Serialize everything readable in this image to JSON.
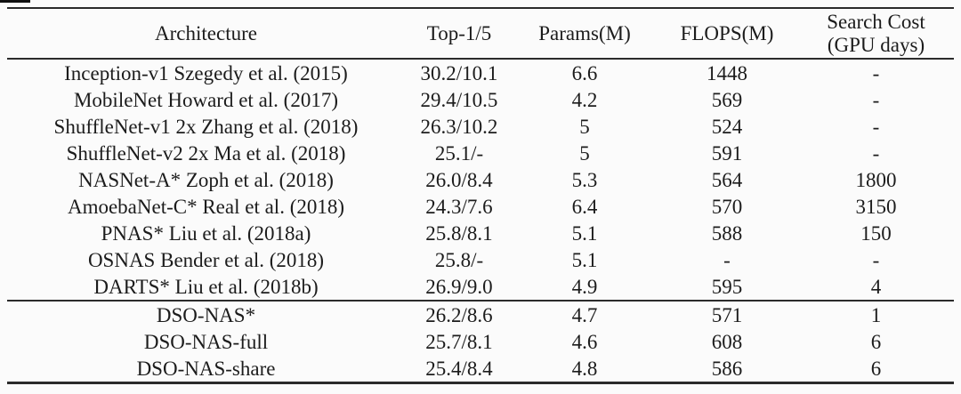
{
  "table": {
    "header": {
      "architecture": "Architecture",
      "top15": "Top-1/5",
      "params": "Params(M)",
      "flops": "FLOPS(M)",
      "search_cost_line1": "Search Cost",
      "search_cost_line2": "(GPU days)"
    },
    "baseline_rows": [
      [
        "Inception-v1 Szegedy et al. (2015)",
        "30.2/10.1",
        "6.6",
        "1448",
        "-"
      ],
      [
        "MobileNet Howard et al. (2017)",
        "29.4/10.5",
        "4.2",
        "569",
        "-"
      ],
      [
        "ShuffleNet-v1 2x Zhang et al. (2018)",
        "26.3/10.2",
        "5",
        "524",
        "-"
      ],
      [
        "ShuffleNet-v2 2x Ma et al. (2018)",
        "25.1/-",
        "5",
        "591",
        "-"
      ],
      [
        "NASNet-A* Zoph et al. (2018)",
        "26.0/8.4",
        "5.3",
        "564",
        "1800"
      ],
      [
        "AmoebaNet-C* Real et al. (2018)",
        "24.3/7.6",
        "6.4",
        "570",
        "3150"
      ],
      [
        "PNAS* Liu et al. (2018a)",
        "25.8/8.1",
        "5.1",
        "588",
        "150"
      ],
      [
        "OSNAS Bender et al. (2018)",
        "25.8/-",
        "5.1",
        "-",
        "-"
      ],
      [
        "DARTS* Liu et al. (2018b)",
        "26.9/9.0",
        "4.9",
        "595",
        "4"
      ]
    ],
    "dso_rows": [
      [
        "DSO-NAS*",
        "26.2/8.6",
        "4.7",
        "571",
        "1"
      ],
      [
        "DSO-NAS-full",
        "25.7/8.1",
        "4.6",
        "608",
        "6"
      ],
      [
        "DSO-NAS-share",
        "25.4/8.4",
        "4.8",
        "586",
        "6"
      ]
    ],
    "colors": {
      "rule": "#2b2b2b",
      "text": "#1c1c1c",
      "background": "#fbfbfb"
    }
  }
}
